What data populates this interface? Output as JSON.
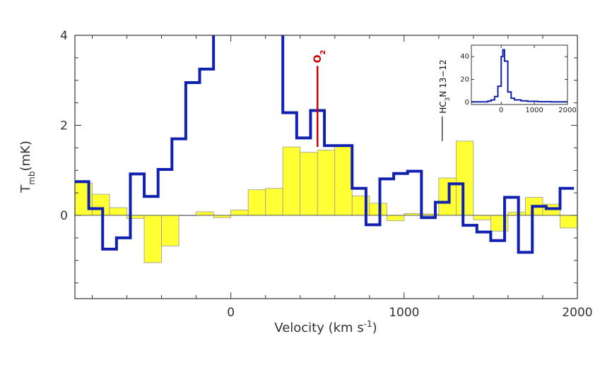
{
  "chart_data": {
    "type": "line",
    "xlabel": "Velocity (km s",
    "xlabel_sup": "-1",
    "xlabel_close": ")",
    "ylabel_main": "T",
    "ylabel_sub": "mb",
    "ylabel_unit": "(mK)",
    "xlim": [
      -900,
      2000
    ],
    "ylim": [
      -1.85,
      4
    ],
    "x_ticks": [
      0,
      1000,
      2000
    ],
    "x_tick_labels": [
      "0",
      "1000",
      "2000"
    ],
    "y_ticks": [
      0,
      2,
      4
    ],
    "y_tick_labels": [
      "0",
      "2",
      "4"
    ],
    "grid": false,
    "series": [
      {
        "style": "filled-histogram",
        "color": "#ffff33",
        "edge_color": "#999999",
        "bin_width": 100,
        "x": [
          -900,
          -800,
          -700,
          -600,
          -500,
          -400,
          -300,
          -200,
          -100,
          0,
          100,
          200,
          300,
          400,
          500,
          600,
          700,
          800,
          900,
          1000,
          1100,
          1200,
          1300,
          1400,
          1500,
          1600,
          1700,
          1800,
          1900
        ],
        "values": [
          0.72,
          0.47,
          0.17,
          -0.07,
          -1.05,
          -0.68,
          0.0,
          0.08,
          -0.05,
          0.12,
          0.57,
          0.6,
          1.52,
          1.4,
          1.45,
          1.57,
          0.43,
          0.27,
          -0.12,
          0.04,
          0.03,
          0.83,
          1.65,
          -0.1,
          -0.35,
          0.07,
          0.4,
          0.25,
          -0.28
        ]
      },
      {
        "style": "step",
        "color": "#1020b0",
        "bin_width": 80,
        "x": [
          -900,
          -820,
          -740,
          -660,
          -580,
          -500,
          -420,
          -340,
          -260,
          -180,
          -100,
          -20,
          60,
          140,
          220,
          300,
          380,
          460,
          540,
          620,
          700,
          780,
          860,
          940,
          1020,
          1100,
          1180,
          1260,
          1340,
          1420,
          1500,
          1580,
          1660,
          1740,
          1820,
          1900
        ],
        "values": [
          0.75,
          0.15,
          -0.75,
          -0.5,
          0.92,
          0.42,
          1.02,
          1.7,
          2.95,
          3.25,
          6.0,
          8.0,
          8.0,
          6.0,
          4.1,
          2.28,
          1.72,
          2.33,
          1.55,
          1.55,
          0.6,
          -0.21,
          0.81,
          0.93,
          0.98,
          -0.05,
          0.29,
          0.7,
          -0.22,
          -0.37,
          -0.56,
          0.4,
          -0.82,
          0.2,
          0.15,
          0.6
        ]
      }
    ],
    "annotations": [
      {
        "label": "O2",
        "label_main": "O",
        "label_sub": "2",
        "x": 500,
        "y_bottom": 1.52,
        "y_top": 3.32,
        "color": "#cc0000"
      },
      {
        "label": "HC3N 13-12",
        "label_a": "HC",
        "label_sub": "3",
        "label_b": "N 13−12",
        "x": 1220,
        "y_bottom": 1.65,
        "y_top": 2.2,
        "color": "#111111"
      }
    ],
    "inset": {
      "type": "line",
      "style": "step",
      "color": "#1020b0",
      "xlim": [
        -900,
        2000
      ],
      "ylim": [
        -2,
        50
      ],
      "x_ticks": [
        0,
        1000,
        2000
      ],
      "x_tick_labels": [
        "0",
        "1000",
        "2000"
      ],
      "y_ticks": [
        0,
        20,
        40
      ],
      "y_tick_labels": [
        "0",
        "20",
        "40"
      ],
      "x": [
        -900,
        -400,
        -300,
        -200,
        -100,
        0,
        50,
        100,
        200,
        300,
        400,
        600,
        800,
        1100,
        1500,
        1800
      ],
      "values": [
        0.3,
        1.0,
        2.0,
        5.0,
        14.0,
        40.0,
        46.0,
        36.0,
        9.0,
        3.5,
        2.0,
        1.2,
        0.8,
        0.5,
        0.3,
        0.3
      ]
    }
  }
}
